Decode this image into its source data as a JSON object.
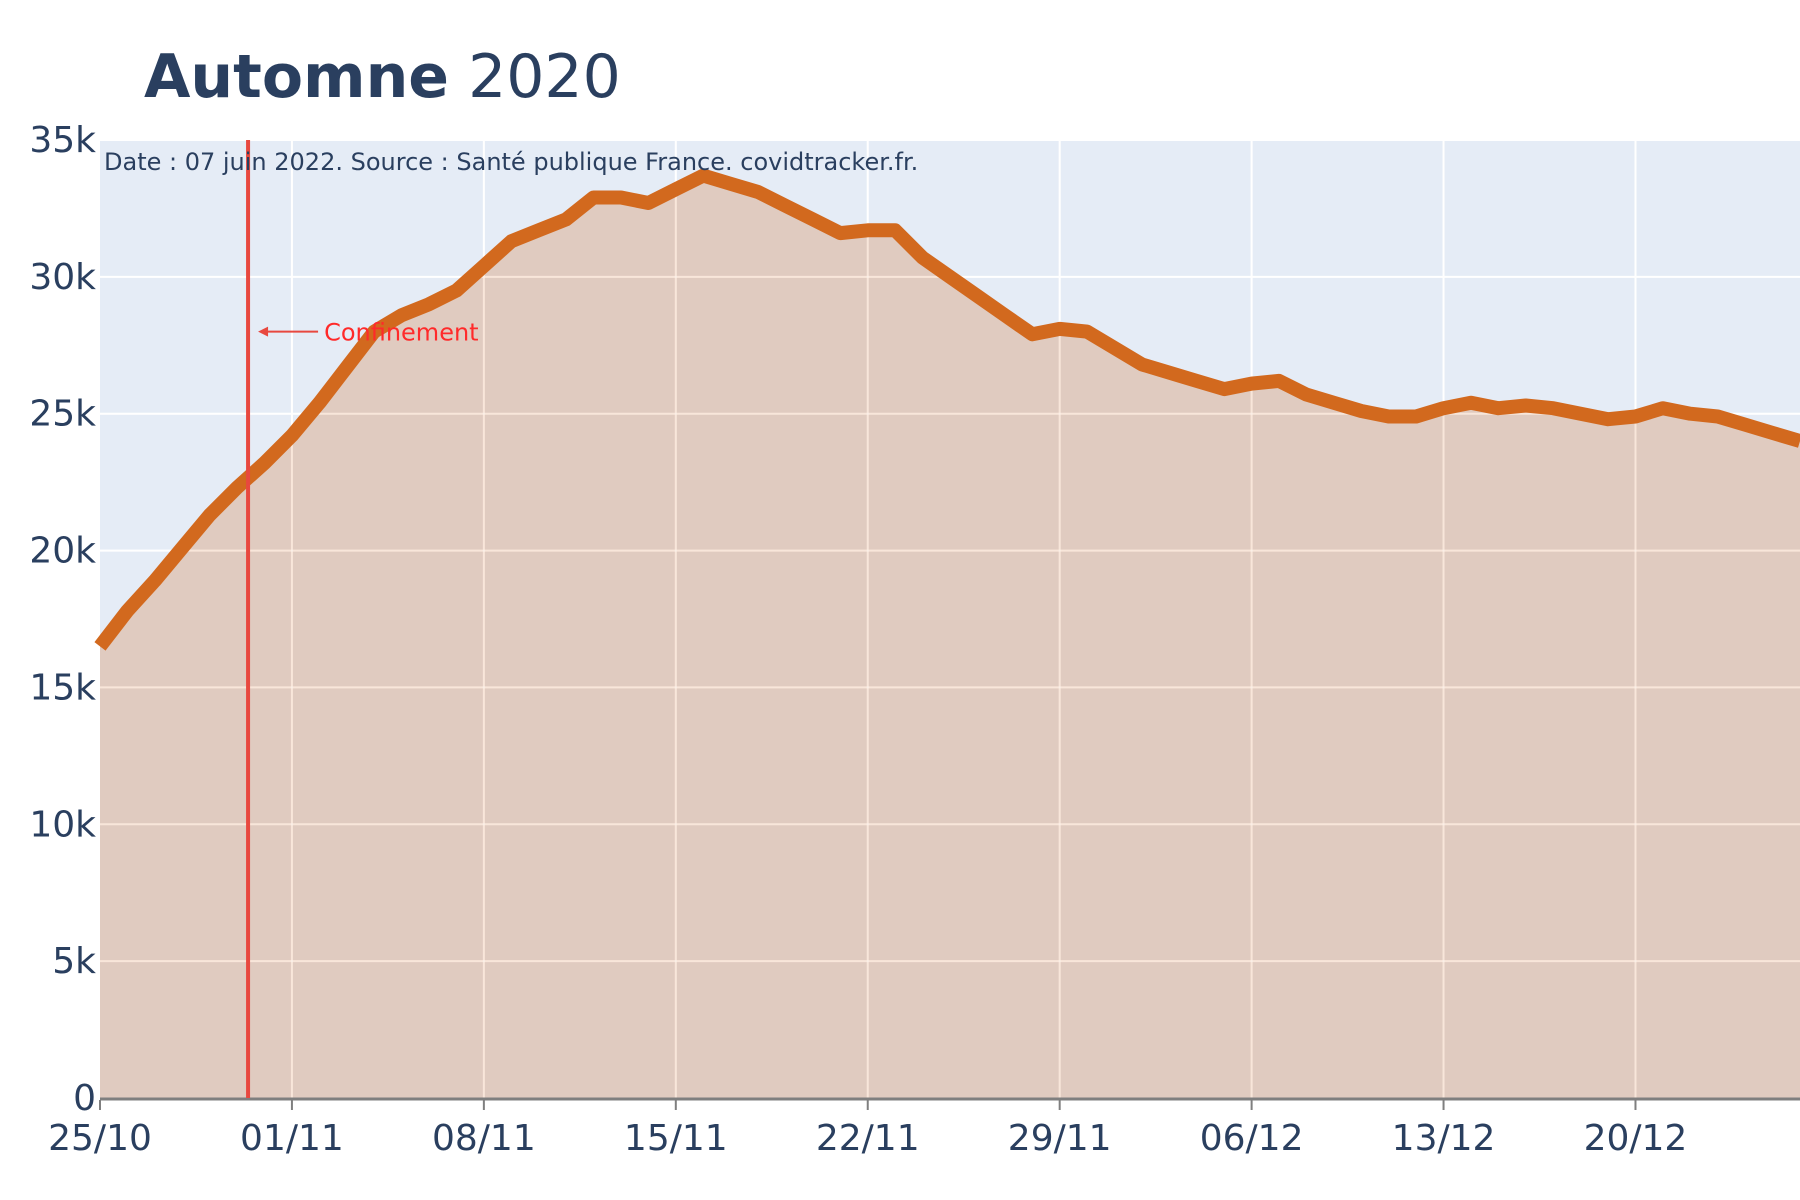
{
  "title": {
    "bold": "Automne",
    "regular": "2020"
  },
  "annotation_source": "Date : 07 juin 2022. Source : Santé publique France. covidtracker.fr.",
  "event": {
    "label": "Confinement",
    "date": "2020-10-30"
  },
  "colors": {
    "line": "#d2691e",
    "fill": "rgba(210,105,30,0.25)",
    "plot_bg": "#e5ecf6",
    "event_line": "#e8483f",
    "event_label": "#ff2a2a",
    "text": "#2a3f5f"
  },
  "chart_data": {
    "type": "area",
    "title": "Automne 2020",
    "xlabel": "",
    "ylabel": "",
    "ylim": [
      0,
      35000
    ],
    "yticks": [
      0,
      5000,
      10000,
      15000,
      20000,
      25000,
      30000,
      35000
    ],
    "ytick_labels": [
      "0",
      "5k",
      "10k",
      "15k",
      "20k",
      "25k",
      "30k",
      "35k"
    ],
    "xlim": [
      "2020-10-25",
      "2020-12-26"
    ],
    "xticks": [
      "2020-10-25",
      "2020-11-01",
      "2020-11-08",
      "2020-11-15",
      "2020-11-22",
      "2020-11-29",
      "2020-12-06",
      "2020-12-13",
      "2020-12-20"
    ],
    "xtick_labels": [
      "25/10",
      "01/11",
      "08/11",
      "15/11",
      "22/11",
      "29/11",
      "06/12",
      "13/12",
      "20/12"
    ],
    "grid": true,
    "legend": "none",
    "x": [
      "2020-10-25",
      "2020-10-26",
      "2020-10-27",
      "2020-10-28",
      "2020-10-29",
      "2020-10-30",
      "2020-10-31",
      "2020-11-01",
      "2020-11-02",
      "2020-11-03",
      "2020-11-04",
      "2020-11-05",
      "2020-11-06",
      "2020-11-07",
      "2020-11-08",
      "2020-11-09",
      "2020-11-10",
      "2020-11-11",
      "2020-11-12",
      "2020-11-13",
      "2020-11-14",
      "2020-11-15",
      "2020-11-16",
      "2020-11-17",
      "2020-11-18",
      "2020-11-19",
      "2020-11-20",
      "2020-11-21",
      "2020-11-22",
      "2020-11-23",
      "2020-11-24",
      "2020-11-25",
      "2020-11-26",
      "2020-11-27",
      "2020-11-28",
      "2020-11-29",
      "2020-11-30",
      "2020-12-01",
      "2020-12-02",
      "2020-12-03",
      "2020-12-04",
      "2020-12-05",
      "2020-12-06",
      "2020-12-07",
      "2020-12-08",
      "2020-12-09",
      "2020-12-10",
      "2020-12-11",
      "2020-12-12",
      "2020-12-13",
      "2020-12-14",
      "2020-12-15",
      "2020-12-16",
      "2020-12-17",
      "2020-12-18",
      "2020-12-19",
      "2020-12-20",
      "2020-12-21",
      "2020-12-22",
      "2020-12-23",
      "2020-12-24",
      "2020-12-25",
      "2020-12-26"
    ],
    "values": [
      16500,
      17800,
      18900,
      20100,
      21300,
      22300,
      23200,
      24200,
      25400,
      26700,
      28000,
      28600,
      29000,
      29500,
      30400,
      31300,
      31700,
      32100,
      32900,
      32900,
      32700,
      33200,
      33700,
      33400,
      33100,
      32600,
      32100,
      31600,
      31700,
      31700,
      30700,
      30000,
      29300,
      28600,
      27900,
      28100,
      28000,
      27400,
      26800,
      26500,
      26200,
      25900,
      26100,
      26200,
      25700,
      25400,
      25100,
      24900,
      24900,
      25200,
      25400,
      25200,
      25300,
      25200,
      25000,
      24800,
      24900,
      25200,
      25000,
      24900,
      24600,
      24300,
      24000
    ]
  }
}
